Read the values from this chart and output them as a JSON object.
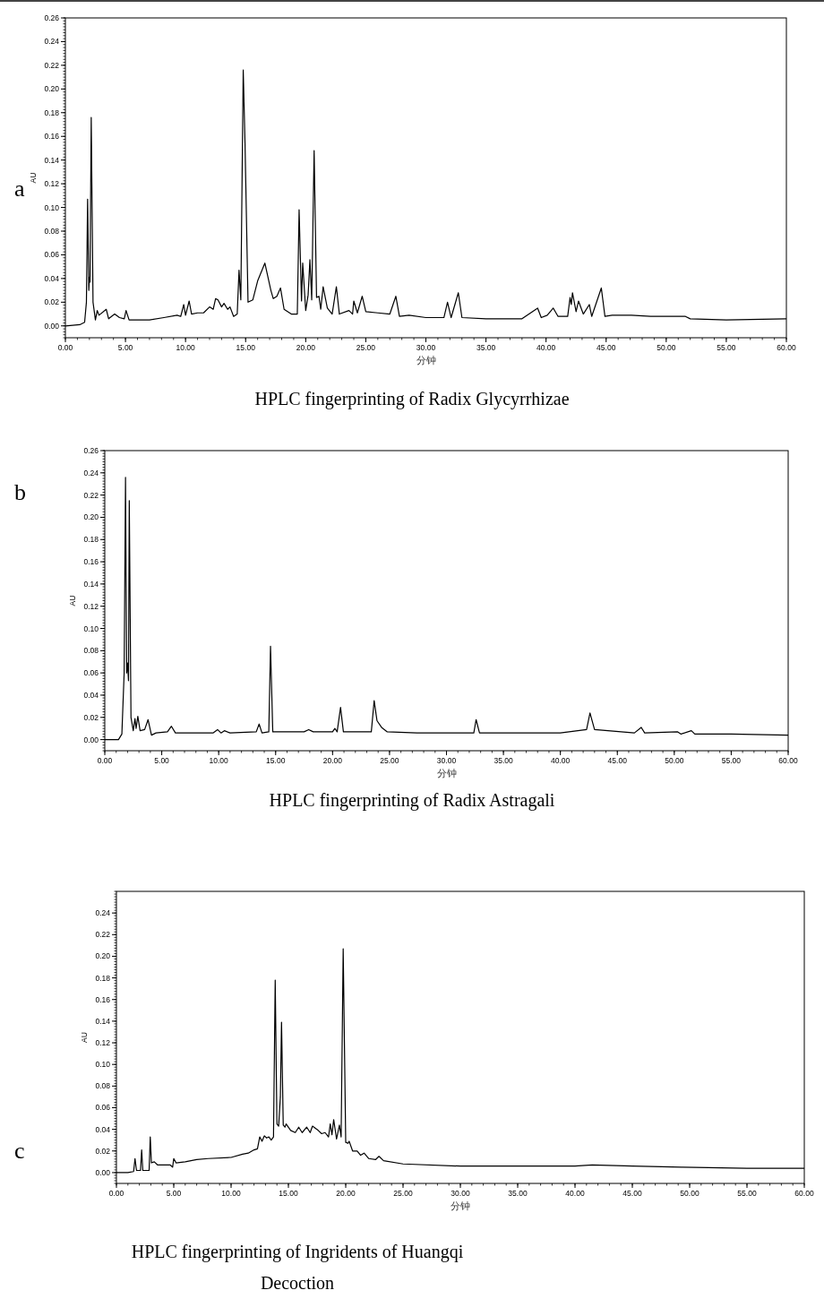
{
  "chart_data": [
    {
      "type": "line",
      "title": "HPLC fingerprinting of Radix Glycyrrhizae",
      "xlabel": "分钟",
      "ylabel": "AU",
      "annotations": [
        "a"
      ],
      "x": [
        0,
        1.2,
        1.6,
        1.75,
        1.85,
        1.95,
        2.0,
        2.05,
        2.15,
        2.3,
        2.5,
        2.65,
        2.8,
        3.4,
        3.6,
        4.1,
        4.5,
        4.9,
        5.05,
        5.3,
        7,
        8.2,
        9.3,
        9.6,
        9.85,
        10.0,
        10.3,
        10.5,
        11,
        11.5,
        12,
        12.3,
        12.5,
        12.7,
        13,
        13.2,
        13.5,
        13.7,
        14.0,
        14.3,
        14.45,
        14.6,
        14.8,
        14.95,
        15.2,
        15.6,
        16,
        16.6,
        17.1,
        17.3,
        17.6,
        17.9,
        18.2,
        18.8,
        19.3,
        19.45,
        19.65,
        19.75,
        20.0,
        20.2,
        20.35,
        20.5,
        20.7,
        20.9,
        21.1,
        21.25,
        21.45,
        21.8,
        22.2,
        22.55,
        22.8,
        23.6,
        23.9,
        24.0,
        24.3,
        24.7,
        25.0,
        26,
        27,
        27.5,
        27.8,
        28.6,
        30,
        31.5,
        31.8,
        32.1,
        32.7,
        33,
        35,
        38,
        39.3,
        39.6,
        40.1,
        40.6,
        41,
        41.8,
        42.0,
        42.1,
        42.2,
        42.5,
        42.7,
        43.1,
        43.6,
        43.8,
        44.6,
        44.9,
        45.5,
        47.1,
        48.7,
        51.6,
        52,
        55,
        60
      ],
      "series": [
        {
          "color": "#000000",
          "values": [
            0,
            0.001,
            0.003,
            0.02,
            0.107,
            0.03,
            0.041,
            0.037,
            0.176,
            0.02,
            0.005,
            0.013,
            0.009,
            0.014,
            0.006,
            0.01,
            0.007,
            0.006,
            0.013,
            0.005,
            0.005,
            0.007,
            0.009,
            0.008,
            0.018,
            0.009,
            0.021,
            0.01,
            0.011,
            0.011,
            0.016,
            0.014,
            0.023,
            0.022,
            0.016,
            0.019,
            0.014,
            0.016,
            0.008,
            0.01,
            0.047,
            0.022,
            0.216,
            0.154,
            0.02,
            0.022,
            0.038,
            0.053,
            0.03,
            0.023,
            0.025,
            0.032,
            0.014,
            0.01,
            0.01,
            0.098,
            0.021,
            0.053,
            0.013,
            0.026,
            0.056,
            0.022,
            0.148,
            0.024,
            0.025,
            0.014,
            0.033,
            0.015,
            0.01,
            0.033,
            0.01,
            0.013,
            0.01,
            0.021,
            0.011,
            0.025,
            0.012,
            0.011,
            0.01,
            0.025,
            0.008,
            0.009,
            0.007,
            0.007,
            0.02,
            0.007,
            0.028,
            0.007,
            0.006,
            0.006,
            0.015,
            0.007,
            0.009,
            0.015,
            0.008,
            0.008,
            0.024,
            0.018,
            0.028,
            0.012,
            0.021,
            0.01,
            0.018,
            0.008,
            0.032,
            0.008,
            0.009,
            0.009,
            0.008,
            0.008,
            0.006,
            0.005,
            0.006
          ]
        }
      ],
      "xlim": [
        0,
        60
      ],
      "ylim": [
        -0.01,
        0.26
      ],
      "xticks": [
        {
          "value": 0,
          "label": "0.00"
        },
        {
          "value": 5,
          "label": "5.00"
        },
        {
          "value": 10,
          "label": "10.00"
        },
        {
          "value": 15,
          "label": "15.00"
        },
        {
          "value": 20,
          "label": "20.00"
        },
        {
          "value": 25,
          "label": "25.00"
        },
        {
          "value": 30,
          "label": "30.00"
        },
        {
          "value": 35,
          "label": "35.00"
        },
        {
          "value": 40,
          "label": "40.00"
        },
        {
          "value": 45,
          "label": "45.00"
        },
        {
          "value": 50,
          "label": "50.00"
        },
        {
          "value": 55,
          "label": "55.00"
        },
        {
          "value": 60,
          "label": "60.00"
        }
      ],
      "yticks": [
        {
          "value": 0,
          "label": "0.00"
        },
        {
          "value": 0.02,
          "label": "0.02"
        },
        {
          "value": 0.04,
          "label": "0.04"
        },
        {
          "value": 0.06,
          "label": "0.06"
        },
        {
          "value": 0.08,
          "label": "0.08"
        },
        {
          "value": 0.1,
          "label": "0.10"
        },
        {
          "value": 0.12,
          "label": "0.12"
        },
        {
          "value": 0.14,
          "label": "0.14"
        },
        {
          "value": 0.16,
          "label": "0.16"
        },
        {
          "value": 0.18,
          "label": "0.18"
        },
        {
          "value": 0.2,
          "label": "0.20"
        },
        {
          "value": 0.22,
          "label": "0.22"
        },
        {
          "value": 0.24,
          "label": "0.24"
        },
        {
          "value": 0.26,
          "label": "0.26"
        }
      ]
    },
    {
      "type": "line",
      "title": "HPLC fingerprinting of Radix Astragali",
      "xlabel": "分钟",
      "ylabel": "AU",
      "annotations": [
        "b"
      ],
      "x": [
        0,
        1.2,
        1.5,
        1.7,
        1.82,
        1.92,
        2.0,
        2.08,
        2.15,
        2.3,
        2.5,
        2.65,
        2.75,
        2.9,
        3.1,
        3.5,
        3.8,
        4.1,
        4.5,
        5.5,
        5.85,
        6.2,
        9.5,
        9.9,
        10.2,
        10.5,
        11,
        13.3,
        13.55,
        13.8,
        14.4,
        14.55,
        14.75,
        17.5,
        17.9,
        18.3,
        20.0,
        20.2,
        20.4,
        20.7,
        20.95,
        23.4,
        23.65,
        23.9,
        24.3,
        24.8,
        27.4,
        32.4,
        32.6,
        32.9,
        40,
        42.3,
        42.6,
        43,
        46.5,
        47.1,
        47.4,
        50.3,
        50.6,
        51.5,
        51.8,
        55,
        60
      ],
      "series": [
        {
          "color": "#000000",
          "values": [
            0,
            0,
            0.005,
            0.06,
            0.236,
            0.06,
            0.069,
            0.053,
            0.215,
            0.02,
            0.008,
            0.019,
            0.01,
            0.021,
            0.008,
            0.009,
            0.018,
            0.004,
            0.006,
            0.007,
            0.012,
            0.006,
            0.006,
            0.009,
            0.006,
            0.008,
            0.006,
            0.007,
            0.014,
            0.006,
            0.007,
            0.084,
            0.007,
            0.007,
            0.009,
            0.007,
            0.007,
            0.01,
            0.007,
            0.029,
            0.007,
            0.007,
            0.035,
            0.017,
            0.011,
            0.007,
            0.006,
            0.006,
            0.018,
            0.006,
            0.006,
            0.009,
            0.024,
            0.009,
            0.006,
            0.011,
            0.006,
            0.007,
            0.005,
            0.008,
            0.005,
            0.005,
            0.004
          ]
        }
      ],
      "xlim": [
        0,
        60
      ],
      "ylim": [
        -0.01,
        0.26
      ],
      "xticks": [
        {
          "value": 0,
          "label": "0.00"
        },
        {
          "value": 5,
          "label": "5.00"
        },
        {
          "value": 10,
          "label": "10.00"
        },
        {
          "value": 15,
          "label": "15.00"
        },
        {
          "value": 20,
          "label": "20.00"
        },
        {
          "value": 25,
          "label": "25.00"
        },
        {
          "value": 30,
          "label": "30.00"
        },
        {
          "value": 35,
          "label": "35.00"
        },
        {
          "value": 40,
          "label": "40.00"
        },
        {
          "value": 45,
          "label": "45.00"
        },
        {
          "value": 50,
          "label": "50.00"
        },
        {
          "value": 55,
          "label": "55.00"
        },
        {
          "value": 60,
          "label": "60.00"
        }
      ],
      "yticks": [
        {
          "value": 0,
          "label": "0.00"
        },
        {
          "value": 0.02,
          "label": "0.02"
        },
        {
          "value": 0.04,
          "label": "0.04"
        },
        {
          "value": 0.06,
          "label": "0.06"
        },
        {
          "value": 0.08,
          "label": "0.08"
        },
        {
          "value": 0.1,
          "label": "0.10"
        },
        {
          "value": 0.12,
          "label": "0.12"
        },
        {
          "value": 0.14,
          "label": "0.14"
        },
        {
          "value": 0.16,
          "label": "0.16"
        },
        {
          "value": 0.18,
          "label": "0.18"
        },
        {
          "value": 0.2,
          "label": "0.20"
        },
        {
          "value": 0.22,
          "label": "0.22"
        },
        {
          "value": 0.24,
          "label": "0.24"
        },
        {
          "value": 0.26,
          "label": "0.26"
        }
      ]
    },
    {
      "type": "line",
      "title": "HPLC fingerprinting of Ingridents of Huangqi Decoction",
      "xlabel": "分钟",
      "ylabel": "AU",
      "annotations": [
        "c"
      ],
      "x": [
        0,
        1.0,
        1.5,
        1.62,
        1.75,
        2.1,
        2.2,
        2.3,
        2.85,
        2.95,
        3.05,
        3.3,
        3.6,
        4.7,
        4.9,
        5.0,
        5.2,
        6,
        7,
        8,
        10,
        11,
        11.5,
        12,
        12.3,
        12.5,
        12.7,
        12.9,
        13.1,
        13.3,
        13.5,
        13.7,
        13.85,
        14.0,
        14.15,
        14.3,
        14.4,
        14.55,
        14.7,
        14.8,
        15.2,
        15.6,
        15.9,
        16.2,
        16.6,
        16.9,
        17.1,
        17.6,
        17.9,
        18.2,
        18.5,
        18.65,
        18.8,
        18.95,
        19.2,
        19.45,
        19.6,
        19.78,
        20.0,
        20.2,
        20.3,
        20.6,
        21.0,
        21.3,
        21.6,
        22,
        22.6,
        22.9,
        23.3,
        25,
        30,
        40,
        41.5,
        45,
        49.3,
        55,
        60
      ],
      "series": [
        {
          "color": "#000000",
          "values": [
            0,
            0,
            0.001,
            0.013,
            0.002,
            0.002,
            0.021,
            0.002,
            0.002,
            0.033,
            0.009,
            0.01,
            0.007,
            0.007,
            0.005,
            0.013,
            0.009,
            0.01,
            0.012,
            0.013,
            0.014,
            0.017,
            0.018,
            0.021,
            0.022,
            0.033,
            0.029,
            0.034,
            0.032,
            0.033,
            0.03,
            0.033,
            0.178,
            0.045,
            0.043,
            0.07,
            0.139,
            0.044,
            0.042,
            0.045,
            0.039,
            0.037,
            0.042,
            0.037,
            0.042,
            0.037,
            0.043,
            0.039,
            0.036,
            0.037,
            0.033,
            0.045,
            0.035,
            0.049,
            0.031,
            0.044,
            0.033,
            0.207,
            0.028,
            0.027,
            0.029,
            0.02,
            0.02,
            0.016,
            0.018,
            0.013,
            0.012,
            0.015,
            0.011,
            0.008,
            0.006,
            0.006,
            0.007,
            0.006,
            0.005,
            0.004,
            0.004
          ]
        }
      ],
      "xlim": [
        0,
        60
      ],
      "ylim": [
        -0.01,
        0.26
      ],
      "xticks": [
        {
          "value": 0,
          "label": "0.00"
        },
        {
          "value": 5,
          "label": "5.00"
        },
        {
          "value": 10,
          "label": "10.00"
        },
        {
          "value": 15,
          "label": "15.00"
        },
        {
          "value": 20,
          "label": "20.00"
        },
        {
          "value": 25,
          "label": "25.00"
        },
        {
          "value": 30,
          "label": "30.00"
        },
        {
          "value": 35,
          "label": "35.00"
        },
        {
          "value": 40,
          "label": "40.00"
        },
        {
          "value": 45,
          "label": "45.00"
        },
        {
          "value": 50,
          "label": "50.00"
        },
        {
          "value": 55,
          "label": "55.00"
        },
        {
          "value": 60,
          "label": "60.00"
        }
      ],
      "yticks": [
        {
          "value": 0,
          "label": "0.00"
        },
        {
          "value": 0.02,
          "label": "0.02"
        },
        {
          "value": 0.04,
          "label": "0.04"
        },
        {
          "value": 0.06,
          "label": "0.06"
        },
        {
          "value": 0.08,
          "label": "0.08"
        },
        {
          "value": 0.1,
          "label": "0.10"
        },
        {
          "value": 0.12,
          "label": "0.12"
        },
        {
          "value": 0.14,
          "label": "0.14"
        },
        {
          "value": 0.16,
          "label": "0.16"
        },
        {
          "value": 0.18,
          "label": "0.18"
        },
        {
          "value": 0.2,
          "label": "0.20"
        },
        {
          "value": 0.22,
          "label": "0.22"
        },
        {
          "value": 0.24,
          "label": "0.24"
        }
      ]
    }
  ]
}
